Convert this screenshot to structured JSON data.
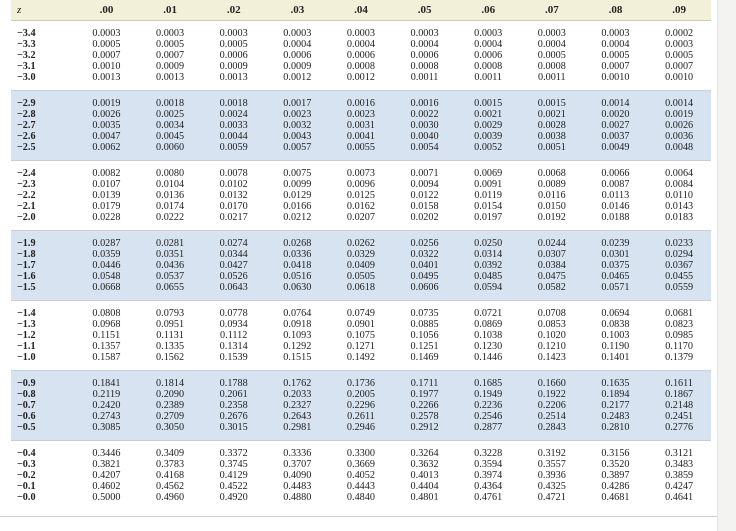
{
  "header": {
    "z_label": "z",
    "columns": [
      ".00",
      ".01",
      ".02",
      ".03",
      ".04",
      ".05",
      ".06",
      ".07",
      ".08",
      ".09"
    ]
  },
  "groups": [
    {
      "shade": "white",
      "rows": [
        {
          "z": "−3.4",
          "v": [
            "0.0003",
            "0.0003",
            "0.0003",
            "0.0003",
            "0.0003",
            "0.0003",
            "0.0003",
            "0.0003",
            "0.0003",
            "0.0002"
          ]
        },
        {
          "z": "−3.3",
          "v": [
            "0.0005",
            "0.0005",
            "0.0005",
            "0.0004",
            "0.0004",
            "0.0004",
            "0.0004",
            "0.0004",
            "0.0004",
            "0.0003"
          ]
        },
        {
          "z": "−3.2",
          "v": [
            "0.0007",
            "0.0007",
            "0.0006",
            "0.0006",
            "0.0006",
            "0.0006",
            "0.0006",
            "0.0005",
            "0.0005",
            "0.0005"
          ]
        },
        {
          "z": "−3.1",
          "v": [
            "0.0010",
            "0.0009",
            "0.0009",
            "0.0009",
            "0.0008",
            "0.0008",
            "0.0008",
            "0.0008",
            "0.0007",
            "0.0007"
          ]
        },
        {
          "z": "−3.0",
          "v": [
            "0.0013",
            "0.0013",
            "0.0013",
            "0.0012",
            "0.0012",
            "0.0011",
            "0.0011",
            "0.0011",
            "0.0010",
            "0.0010"
          ]
        }
      ]
    },
    {
      "shade": "blue",
      "rows": [
        {
          "z": "−2.9",
          "v": [
            "0.0019",
            "0.0018",
            "0.0018",
            "0.0017",
            "0.0016",
            "0.0016",
            "0.0015",
            "0.0015",
            "0.0014",
            "0.0014"
          ]
        },
        {
          "z": "−2.8",
          "v": [
            "0.0026",
            "0.0025",
            "0.0024",
            "0.0023",
            "0.0023",
            "0.0022",
            "0.0021",
            "0.0021",
            "0.0020",
            "0.0019"
          ]
        },
        {
          "z": "−2.7",
          "v": [
            "0.0035",
            "0.0034",
            "0.0033",
            "0.0032",
            "0.0031",
            "0.0030",
            "0.0029",
            "0.0028",
            "0.0027",
            "0.0026"
          ]
        },
        {
          "z": "−2.6",
          "v": [
            "0.0047",
            "0.0045",
            "0.0044",
            "0.0043",
            "0.0041",
            "0.0040",
            "0.0039",
            "0.0038",
            "0.0037",
            "0.0036"
          ]
        },
        {
          "z": "−2.5",
          "v": [
            "0.0062",
            "0.0060",
            "0.0059",
            "0.0057",
            "0.0055",
            "0.0054",
            "0.0052",
            "0.0051",
            "0.0049",
            "0.0048"
          ]
        }
      ]
    },
    {
      "shade": "white",
      "rows": [
        {
          "z": "−2.4",
          "v": [
            "0.0082",
            "0.0080",
            "0.0078",
            "0.0075",
            "0.0073",
            "0.0071",
            "0.0069",
            "0.0068",
            "0.0066",
            "0.0064"
          ]
        },
        {
          "z": "−2.3",
          "v": [
            "0.0107",
            "0.0104",
            "0.0102",
            "0.0099",
            "0.0096",
            "0.0094",
            "0.0091",
            "0.0089",
            "0.0087",
            "0.0084"
          ]
        },
        {
          "z": "−2.2",
          "v": [
            "0.0139",
            "0.0136",
            "0.0132",
            "0.0129",
            "0.0125",
            "0.0122",
            "0.0119",
            "0.0116",
            "0.0113",
            "0.0110"
          ]
        },
        {
          "z": "−2.1",
          "v": [
            "0.0179",
            "0.0174",
            "0.0170",
            "0.0166",
            "0.0162",
            "0.0158",
            "0.0154",
            "0.0150",
            "0.0146",
            "0.0143"
          ]
        },
        {
          "z": "−2.0",
          "v": [
            "0.0228",
            "0.0222",
            "0.0217",
            "0.0212",
            "0.0207",
            "0.0202",
            "0.0197",
            "0.0192",
            "0.0188",
            "0.0183"
          ]
        }
      ]
    },
    {
      "shade": "blue",
      "rows": [
        {
          "z": "−1.9",
          "v": [
            "0.0287",
            "0.0281",
            "0.0274",
            "0.0268",
            "0.0262",
            "0.0256",
            "0.0250",
            "0.0244",
            "0.0239",
            "0.0233"
          ]
        },
        {
          "z": "−1.8",
          "v": [
            "0.0359",
            "0.0351",
            "0.0344",
            "0.0336",
            "0.0329",
            "0.0322",
            "0.0314",
            "0.0307",
            "0.0301",
            "0.0294"
          ]
        },
        {
          "z": "−1.7",
          "v": [
            "0.0446",
            "0.0436",
            "0.0427",
            "0.0418",
            "0.0409",
            "0.0401",
            "0.0392",
            "0.0384",
            "0.0375",
            "0.0367"
          ]
        },
        {
          "z": "−1.6",
          "v": [
            "0.0548",
            "0.0537",
            "0.0526",
            "0.0516",
            "0.0505",
            "0.0495",
            "0.0485",
            "0.0475",
            "0.0465",
            "0.0455"
          ]
        },
        {
          "z": "−1.5",
          "v": [
            "0.0668",
            "0.0655",
            "0.0643",
            "0.0630",
            "0.0618",
            "0.0606",
            "0.0594",
            "0.0582",
            "0.0571",
            "0.0559"
          ]
        }
      ]
    },
    {
      "shade": "white",
      "rows": [
        {
          "z": "−1.4",
          "v": [
            "0.0808",
            "0.0793",
            "0.0778",
            "0.0764",
            "0.0749",
            "0.0735",
            "0.0721",
            "0.0708",
            "0.0694",
            "0.0681"
          ]
        },
        {
          "z": "−1.3",
          "v": [
            "0.0968",
            "0.0951",
            "0.0934",
            "0.0918",
            "0.0901",
            "0.0885",
            "0.0869",
            "0.0853",
            "0.0838",
            "0.0823"
          ]
        },
        {
          "z": "−1.2",
          "v": [
            "0.1151",
            "0.1131",
            "0.1112",
            "0.1093",
            "0.1075",
            "0.1056",
            "0.1038",
            "0.1020",
            "0.1003",
            "0.0985"
          ]
        },
        {
          "z": "−1.1",
          "v": [
            "0.1357",
            "0.1335",
            "0.1314",
            "0.1292",
            "0.1271",
            "0.1251",
            "0.1230",
            "0.1210",
            "0.1190",
            "0.1170"
          ]
        },
        {
          "z": "−1.0",
          "v": [
            "0.1587",
            "0.1562",
            "0.1539",
            "0.1515",
            "0.1492",
            "0.1469",
            "0.1446",
            "0.1423",
            "0.1401",
            "0.1379"
          ]
        }
      ]
    },
    {
      "shade": "blue",
      "rows": [
        {
          "z": "−0.9",
          "v": [
            "0.1841",
            "0.1814",
            "0.1788",
            "0.1762",
            "0.1736",
            "0.1711",
            "0.1685",
            "0.1660",
            "0.1635",
            "0.1611"
          ]
        },
        {
          "z": "−0.8",
          "v": [
            "0.2119",
            "0.2090",
            "0.2061",
            "0.2033",
            "0.2005",
            "0.1977",
            "0.1949",
            "0.1922",
            "0.1894",
            "0.1867"
          ]
        },
        {
          "z": "−0.7",
          "v": [
            "0.2420",
            "0.2389",
            "0.2358",
            "0.2327",
            "0.2296",
            "0.2266",
            "0.2236",
            "0.2206",
            "0.2177",
            "0.2148"
          ]
        },
        {
          "z": "−0.6",
          "v": [
            "0.2743",
            "0.2709",
            "0.2676",
            "0.2643",
            "0.2611",
            "0.2578",
            "0.2546",
            "0.2514",
            "0.2483",
            "0.2451"
          ]
        },
        {
          "z": "−0.5",
          "v": [
            "0.3085",
            "0.3050",
            "0.3015",
            "0.2981",
            "0.2946",
            "0.2912",
            "0.2877",
            "0.2843",
            "0.2810",
            "0.2776"
          ]
        }
      ]
    },
    {
      "shade": "white",
      "rows": [
        {
          "z": "−0.4",
          "v": [
            "0.3446",
            "0.3409",
            "0.3372",
            "0.3336",
            "0.3300",
            "0.3264",
            "0.3228",
            "0.3192",
            "0.3156",
            "0.3121"
          ]
        },
        {
          "z": "−0.3",
          "v": [
            "0.3821",
            "0.3783",
            "0.3745",
            "0.3707",
            "0.3669",
            "0.3632",
            "0.3594",
            "0.3557",
            "0.3520",
            "0.3483"
          ]
        },
        {
          "z": "−0.2",
          "v": [
            "0.4207",
            "0.4168",
            "0.4129",
            "0.4090",
            "0.4052",
            "0.4013",
            "0.3974",
            "0.3936",
            "0.3897",
            "0.3859"
          ]
        },
        {
          "z": "−0.1",
          "v": [
            "0.4602",
            "0.4562",
            "0.4522",
            "0.4483",
            "0.4443",
            "0.4404",
            "0.4364",
            "0.4325",
            "0.4286",
            "0.4247"
          ]
        },
        {
          "z": "−0.0",
          "v": [
            "0.5000",
            "0.4960",
            "0.4920",
            "0.4880",
            "0.4840",
            "0.4801",
            "0.4761",
            "0.4721",
            "0.4681",
            "0.4641"
          ]
        }
      ]
    }
  ]
}
